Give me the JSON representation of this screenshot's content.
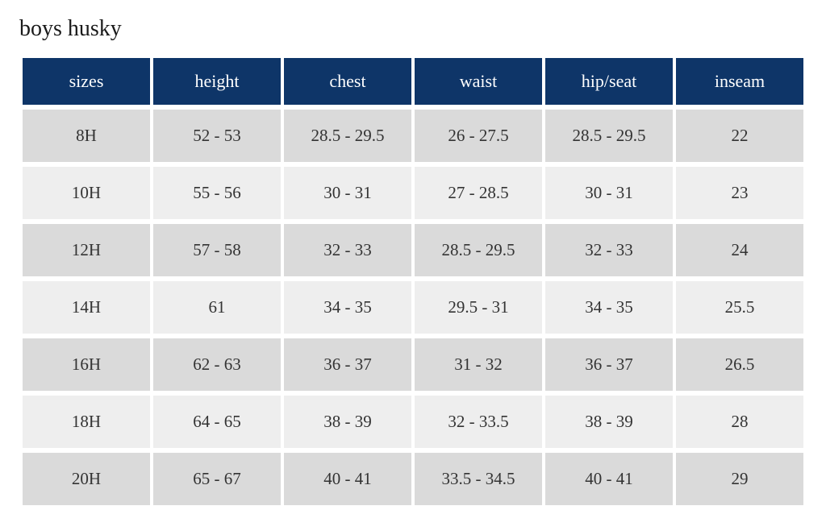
{
  "title": "boys husky",
  "size_chart": {
    "type": "table",
    "columns": [
      "sizes",
      "height",
      "chest",
      "waist",
      "hip/seat",
      "inseam"
    ],
    "rows": [
      [
        "8H",
        "52 - 53",
        "28.5 - 29.5",
        "26 - 27.5",
        "28.5 - 29.5",
        "22"
      ],
      [
        "10H",
        "55 - 56",
        "30 - 31",
        "27 - 28.5",
        "30 - 31",
        "23"
      ],
      [
        "12H",
        "57 - 58",
        "32 - 33",
        "28.5 - 29.5",
        "32 - 33",
        "24"
      ],
      [
        "14H",
        "61",
        "34 - 35",
        "29.5 - 31",
        "34 - 35",
        "25.5"
      ],
      [
        "16H",
        "62 - 63",
        "36 - 37",
        "31 - 32",
        "36 - 37",
        "26.5"
      ],
      [
        "18H",
        "64 - 65",
        "38 - 39",
        "32 - 33.5",
        "38 - 39",
        "28"
      ],
      [
        "20H",
        "65 - 67",
        "40 - 41",
        "33.5 - 34.5",
        "40 - 41",
        "29"
      ]
    ],
    "header_background_color": "#0e3568",
    "header_text_color": "#ffffff",
    "row_odd_background_color": "#dadada",
    "row_even_background_color": "#eeeeee",
    "cell_text_color": "#333333",
    "title_color": "#1a1a1a",
    "title_fontsize": 28,
    "header_fontsize": 22,
    "cell_fontsize": 21,
    "background_color": "#ffffff",
    "border_spacing_x": 4,
    "border_spacing_y": 6
  }
}
